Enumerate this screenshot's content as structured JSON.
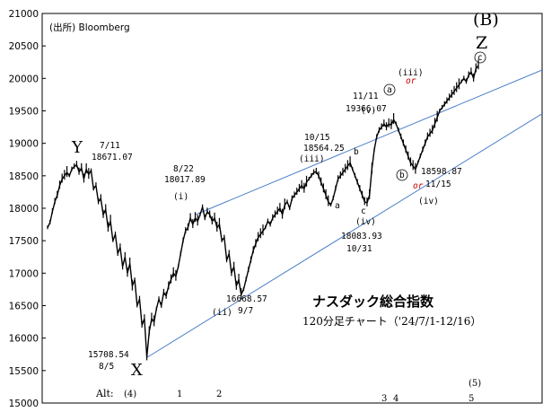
{
  "source_note": "(出所) Bloomberg",
  "title": "ナスダック総合指数",
  "subtitle": "120分足チャート（'24/7/1-12/16）",
  "alt_label": "Alt:",
  "chart_data": {
    "type": "line",
    "ylim": [
      15000,
      21000
    ],
    "yticks": [
      15000,
      15500,
      16000,
      16500,
      17000,
      17500,
      18000,
      18500,
      19000,
      19500,
      20000,
      20500,
      21000
    ],
    "grid": false,
    "series": [
      {
        "values": [
          17700,
          17780,
          17950,
          18100,
          18200,
          18350,
          18450,
          18500,
          18550,
          18500,
          18600,
          18640,
          18671,
          18560,
          18620,
          18450,
          18600,
          18520,
          18580,
          18300,
          18350,
          18100,
          18150,
          17900,
          17980,
          17700,
          17800,
          17500,
          17600,
          17300,
          17400,
          17100,
          17250,
          17000,
          17150,
          16800,
          16900,
          16500,
          16600,
          16200,
          16300,
          15708,
          16100,
          16300,
          16250,
          16450,
          16600,
          16500,
          16700,
          16650,
          16800,
          16900,
          17000,
          16950,
          17100,
          17300,
          17500,
          17650,
          17700,
          17850,
          17750,
          17850,
          17800,
          17900,
          18017,
          17850,
          17950,
          17900,
          17800,
          17850,
          17700,
          17750,
          17500,
          17550,
          17200,
          17300,
          17000,
          17100,
          16800,
          16900,
          16668,
          16750,
          16900,
          17050,
          17200,
          17350,
          17450,
          17550,
          17600,
          17650,
          17700,
          17800,
          17750,
          17850,
          17900,
          17950,
          18000,
          17900,
          18050,
          18100,
          18000,
          18150,
          18200,
          18250,
          18300,
          18350,
          18300,
          18400,
          18450,
          18500,
          18550,
          18564,
          18500,
          18400,
          18300,
          18200,
          18100,
          18050,
          18150,
          18300,
          18450,
          18500,
          18550,
          18600,
          18650,
          18700,
          18600,
          18500,
          18400,
          18300,
          18200,
          18100,
          18083,
          18200,
          18600,
          18900,
          19100,
          19200,
          19250,
          19300,
          19250,
          19300,
          19280,
          19366,
          19300,
          19200,
          19100,
          19000,
          18900,
          18800,
          18700,
          18650,
          18598,
          18700,
          18800,
          18900,
          19000,
          19100,
          19150,
          19200,
          19300,
          19400,
          19500,
          19550,
          19600,
          19650,
          19700,
          19750,
          19800,
          19850,
          19900,
          19950,
          20000,
          19950,
          20050,
          20100,
          20000,
          20150,
          20200
        ]
      }
    ],
    "channel_upper": {
      "x0_index": 61,
      "y0": 17900,
      "x1_index": 202,
      "y1": 20180
    },
    "channel_lower": {
      "x0_index": 41,
      "y0": 15700,
      "x1_index": 202,
      "y1": 19530
    },
    "annotations": [
      {
        "text": "Y",
        "class": "wave-big"
      },
      {
        "text": "7/11",
        "class": "date"
      },
      {
        "text": "18671.07",
        "class": "price"
      },
      {
        "text": "8/22",
        "class": "date"
      },
      {
        "text": "18017.89",
        "class": "price"
      },
      {
        "text": "(i)",
        "class": "wave"
      },
      {
        "text": "16668.57",
        "class": "price"
      },
      {
        "text": "9/7",
        "class": "date"
      },
      {
        "text": "(ii)",
        "class": "wave"
      },
      {
        "text": "15708.54",
        "class": "price"
      },
      {
        "text": "8/5",
        "class": "date"
      },
      {
        "text": "X",
        "class": "wave-big"
      },
      {
        "text": "10/15",
        "class": "date"
      },
      {
        "text": "18564.25",
        "class": "price"
      },
      {
        "text": "(iii)",
        "class": "wave"
      },
      {
        "text": "b",
        "class": "sub"
      },
      {
        "text": "a",
        "class": "sub"
      },
      {
        "text": "c",
        "class": "sub"
      },
      {
        "text": "(iv)",
        "class": "wave"
      },
      {
        "text": "18083.93",
        "class": "price"
      },
      {
        "text": "10/31",
        "class": "date"
      },
      {
        "text": "11/11",
        "class": "date"
      },
      {
        "text": "19366.07",
        "class": "price"
      },
      {
        "text": "(v)",
        "class": "wave"
      },
      {
        "text": "(iii)",
        "class": "wave"
      },
      {
        "text": "or",
        "class": "or"
      },
      {
        "text": "a",
        "class": "circle"
      },
      {
        "text": "b",
        "class": "circle"
      },
      {
        "text": "or",
        "class": "or"
      },
      {
        "text": "18598.87",
        "class": "price"
      },
      {
        "text": "11/15",
        "class": "date"
      },
      {
        "text": "(iv)",
        "class": "wave"
      },
      {
        "text": "(B)",
        "class": "wave-big"
      },
      {
        "text": "Z",
        "class": "wave-big"
      },
      {
        "text": "c",
        "class": "circle"
      }
    ],
    "alt_labels": [
      "(4)",
      "1",
      "2",
      "3",
      "4",
      "(5)",
      "5"
    ]
  },
  "colors": {
    "line": "#000000",
    "channel": "#4a7ec8",
    "or_text": "#c00000"
  }
}
